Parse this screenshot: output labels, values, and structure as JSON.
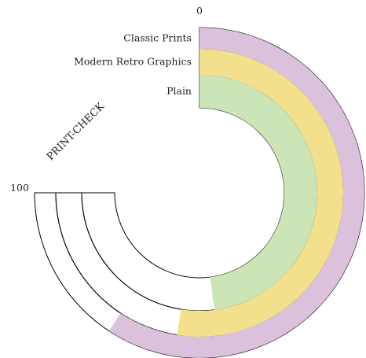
{
  "chart_data": {
    "type": "radial-bar",
    "title": "PRINT-CHECK",
    "axis": {
      "min": 0,
      "max": 100,
      "tick_labels": [
        "0",
        "100"
      ]
    },
    "categories": [
      "Classic Prints",
      "Modern  Retro Graphics",
      "Plain"
    ],
    "values": [
      79,
      70,
      64
    ],
    "colors": [
      "#dcc1dd",
      "#f2e08c",
      "#cce5b7"
    ]
  }
}
